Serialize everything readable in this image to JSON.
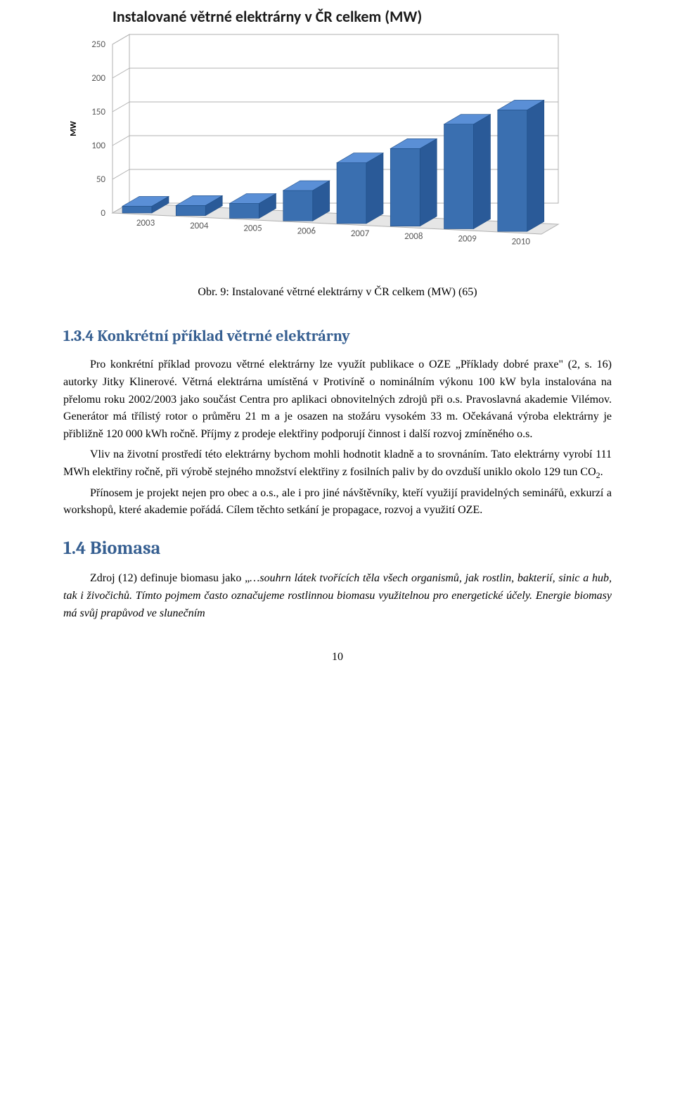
{
  "chart": {
    "type": "bar-3d",
    "title": "Instalované větrné elektrárny v ČR  celkem (MW)",
    "title_fontsize": 22,
    "title_color": "#1a1a1a",
    "ylabel": "MW",
    "label_fontsize": 12,
    "categories": [
      "2003",
      "2004",
      "2005",
      "2006",
      "2007",
      "2008",
      "2009",
      "2010"
    ],
    "values": [
      10,
      15,
      22,
      45,
      90,
      115,
      155,
      180
    ],
    "ylim": [
      0,
      250
    ],
    "ytick_step": 50,
    "yticks": [
      "0",
      "50",
      "100",
      "150",
      "200",
      "250"
    ],
    "bar_color_top": "#5a8fd6",
    "bar_color_front": "#3a6fb0",
    "bar_color_side": "#2a5a98",
    "background_color": "#ffffff",
    "grid_color": "#b0b0b0",
    "wall_color": "#ffffff",
    "floor_color": "#e6e6e6",
    "axis_font_color": "#595959",
    "axis_fontsize": 13,
    "bar_width_ratio": 0.6
  },
  "caption": "Obr. 9: Instalované větrné elektrárny v ČR celkem (MW) (65)",
  "headings": {
    "sec134": "1.3.4  Konkrétní příklad větrné elektrárny",
    "sec14": "1.4  Biomasa"
  },
  "paragraphs": {
    "p1a": "Pro konkrétní příklad provozu větrné elektrárny lze využít publikace o OZE „Příklady dobré praxe\" (2, s. 16) autorky Jitky Klinerové. Větrná elektrárna umístěná v Protivíně o nominálním výkonu 100 kW byla instalována na přelomu roku 2002/2003 jako součást Centra pro aplikaci obnovitelných zdrojů při o.s. Pravoslavná akademie Vilémov. Generátor má třílistý rotor o průměru 21 m a je osazen na stožáru vysokém 33 m. Očekávaná výroba elektrárny je přibližně 120 000 kWh ročně. Příjmy z prodeje elektřiny podporují činnost i další rozvoj zmíněného o.s.",
    "p2a": "Vliv na životní prostředí této elektrárny bychom mohli hodnotit kladně a to srovnáním. Tato elektrárny vyrobí 111 MWh elektřiny ročně, při výrobě stejného množství elektřiny z fosilních paliv by do ovzduší uniklo okolo 129 tun CO",
    "p2b": ".",
    "p3": "Přínosem je projekt nejen pro obec a o.s., ale i pro jiné návštěvníky, kteří využijí pravidelných seminářů, exkurzí a workshopů, které akademie pořádá. Cílem těchto setkání je propagace, rozvoj a využití OZE.",
    "p4a": "Zdroj (12) definuje biomasu jako „",
    "p4b": "…souhrn látek tvořících těla všech organismů, jak rostlin, bakterií, sinic a hub, tak i živočichů. Tímto pojmem často označujeme rostlinnou biomasu využitelnou pro energetické účely. Energie biomasy má svůj prapůvod ve slunečním"
  },
  "co2_sub": "2",
  "page_number": "10"
}
